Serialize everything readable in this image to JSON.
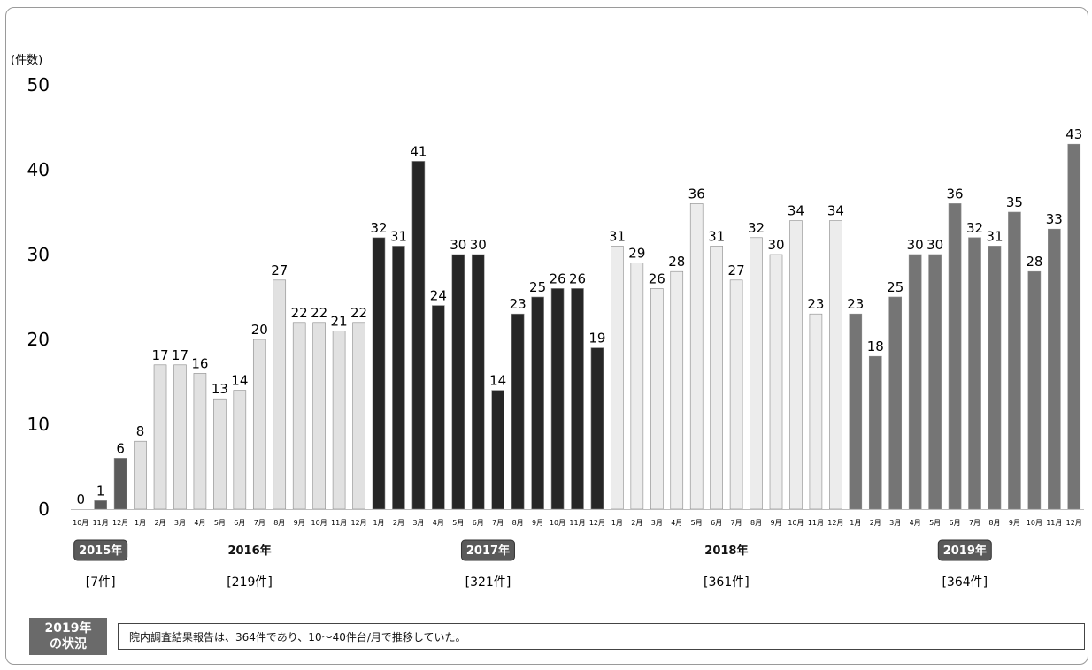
{
  "chart_data": {
    "type": "bar",
    "ylabel": "(件数)",
    "ylim": [
      0,
      50
    ],
    "yticks": [
      "0",
      "10",
      "20",
      "30",
      "40",
      "50"
    ],
    "categories": [
      "10月",
      "11月",
      "12月",
      "1月",
      "2月",
      "3月",
      "4月",
      "5月",
      "6月",
      "7月",
      "8月",
      "9月",
      "10月",
      "11月",
      "12月",
      "1月",
      "2月",
      "3月",
      "4月",
      "5月",
      "6月",
      "7月",
      "8月",
      "9月",
      "10月",
      "11月",
      "12月",
      "1月",
      "2月",
      "3月",
      "4月",
      "5月",
      "6月",
      "7月",
      "8月",
      "9月",
      "10月",
      "11月",
      "12月",
      "1月",
      "2月",
      "3月",
      "4月",
      "5月",
      "6月",
      "7月",
      "8月",
      "9月",
      "10月",
      "11月",
      "12月"
    ],
    "values": [
      0,
      1,
      6,
      8,
      17,
      17,
      16,
      13,
      14,
      20,
      27,
      22,
      22,
      21,
      22,
      32,
      31,
      41,
      24,
      30,
      30,
      14,
      23,
      25,
      26,
      26,
      19,
      31,
      29,
      26,
      28,
      36,
      31,
      27,
      32,
      30,
      34,
      23,
      34,
      23,
      18,
      25,
      30,
      30,
      36,
      32,
      31,
      35,
      28,
      33,
      43
    ],
    "groups": [
      {
        "year": "2015年",
        "total": "[7件]",
        "start": 0,
        "end": 2,
        "color": "#5b5b5b",
        "badge": true
      },
      {
        "year": "2016年",
        "total": "[219件]",
        "start": 3,
        "end": 14,
        "color": "#e1e1e1",
        "badge": false
      },
      {
        "year": "2017年",
        "total": "[321件]",
        "start": 15,
        "end": 26,
        "color": "#262626",
        "badge": true
      },
      {
        "year": "2018年",
        "total": "[361件]",
        "start": 27,
        "end": 38,
        "color": "#ececec",
        "badge": false
      },
      {
        "year": "2019年",
        "total": "[364件]",
        "start": 39,
        "end": 50,
        "color": "#757575",
        "badge": true
      }
    ],
    "grid": false,
    "legend": "none"
  },
  "summary": {
    "badge_line1": "2019年",
    "badge_line2": "の状況",
    "text": "院内調査結果報告は、364件であり、10～40件台/月で推移していた。"
  }
}
